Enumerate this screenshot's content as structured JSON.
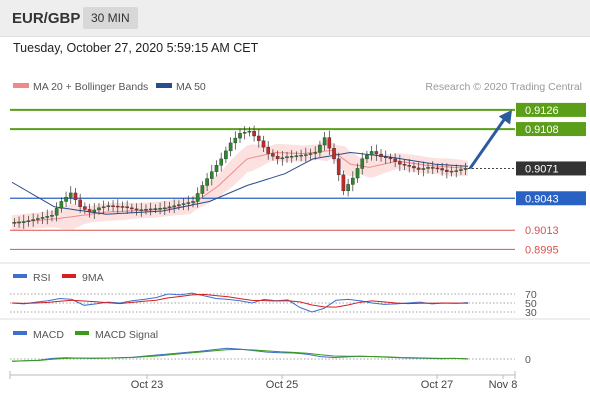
{
  "header": {
    "symbol": "EUR/GBP",
    "timeframe": "30 MIN"
  },
  "datetime": "Tuesday, October 27, 2020 5:59:15 AM CET",
  "chart_data": {
    "type": "candlestick",
    "legend": [
      {
        "label": "MA 20 + Bollinger Bands",
        "color": "#f08a8a"
      },
      {
        "label": "MA 50",
        "color": "#2b4d8c"
      }
    ],
    "copyright": "Research © 2020 Trading Central",
    "ylim": [
      0.8985,
      0.914
    ],
    "last_price": {
      "value": 0.9071,
      "label": "0.9071"
    },
    "levels": [
      {
        "label": "0.9126",
        "value": 0.9126,
        "kind": "resistance",
        "color": "#5a9e1a"
      },
      {
        "label": "0.9108",
        "value": 0.9108,
        "kind": "resistance",
        "color": "#5a9e1a"
      },
      {
        "label": "0.9043",
        "value": 0.9043,
        "kind": "pivot",
        "color": "#2a62c4"
      },
      {
        "label": "0.9013",
        "value": 0.9013,
        "kind": "support",
        "color": "#d9534f"
      },
      {
        "label": "0.8995",
        "value": 0.8995,
        "kind": "support",
        "color": "#d9534f"
      }
    ],
    "arrow": {
      "from": 0.9071,
      "to": 0.9126,
      "color": "#2b5a9e"
    },
    "x_ticks": [
      "Oct 23",
      "Oct 25",
      "Oct 27",
      "Nov 8"
    ],
    "price_path": [
      [
        0,
        0.902
      ],
      [
        3,
        0.9021
      ],
      [
        6,
        0.9024
      ],
      [
        9,
        0.9027
      ],
      [
        11,
        0.904
      ],
      [
        13,
        0.9048
      ],
      [
        15,
        0.9035
      ],
      [
        17,
        0.903
      ],
      [
        19,
        0.9034
      ],
      [
        21,
        0.9036
      ],
      [
        24,
        0.9035
      ],
      [
        27,
        0.9032
      ],
      [
        30,
        0.9033
      ],
      [
        33,
        0.9034
      ],
      [
        36,
        0.9037
      ],
      [
        39,
        0.904
      ],
      [
        41,
        0.9055
      ],
      [
        43,
        0.9068
      ],
      [
        45,
        0.908
      ],
      [
        47,
        0.9095
      ],
      [
        49,
        0.9104
      ],
      [
        51,
        0.9106
      ],
      [
        53,
        0.9097
      ],
      [
        55,
        0.9085
      ],
      [
        57,
        0.908
      ],
      [
        59,
        0.9082
      ],
      [
        61,
        0.9083
      ],
      [
        63,
        0.9084
      ],
      [
        65,
        0.9086
      ],
      [
        67,
        0.91
      ],
      [
        69,
        0.908
      ],
      [
        71,
        0.905
      ],
      [
        73,
        0.9062
      ],
      [
        75,
        0.908
      ],
      [
        77,
        0.9087
      ],
      [
        79,
        0.9082
      ],
      [
        81,
        0.908
      ],
      [
        83,
        0.9075
      ],
      [
        85,
        0.9073
      ],
      [
        87,
        0.907
      ],
      [
        89,
        0.9072
      ],
      [
        91,
        0.9071
      ],
      [
        93,
        0.9068
      ],
      [
        95,
        0.9069
      ],
      [
        97,
        0.9071
      ]
    ],
    "ma20": [
      [
        0,
        0.902
      ],
      [
        10,
        0.9024
      ],
      [
        20,
        0.903
      ],
      [
        30,
        0.9032
      ],
      [
        38,
        0.9036
      ],
      [
        44,
        0.9055
      ],
      [
        50,
        0.908
      ],
      [
        56,
        0.9086
      ],
      [
        62,
        0.9085
      ],
      [
        68,
        0.9088
      ],
      [
        72,
        0.9075
      ],
      [
        76,
        0.9072
      ],
      [
        82,
        0.9078
      ],
      [
        88,
        0.9074
      ],
      [
        97,
        0.9071
      ]
    ],
    "ma50": [
      [
        0,
        0.9058
      ],
      [
        9,
        0.9035
      ],
      [
        20,
        0.9028
      ],
      [
        32,
        0.9031
      ],
      [
        42,
        0.904
      ],
      [
        50,
        0.9055
      ],
      [
        58,
        0.9066
      ],
      [
        64,
        0.908
      ],
      [
        72,
        0.9086
      ],
      [
        80,
        0.9082
      ],
      [
        90,
        0.9075
      ],
      [
        97,
        0.9073
      ]
    ],
    "bb_width": 0.0012,
    "rsi": {
      "label": "RSI",
      "color": "#3d6fcf",
      "signal_label": "9MA",
      "signal_color": "#d42020",
      "levels": [
        70,
        50,
        30
      ],
      "values": [
        50,
        48,
        52,
        55,
        60,
        58,
        45,
        48,
        52,
        50,
        55,
        58,
        62,
        70,
        68,
        72,
        66,
        60,
        58,
        55,
        50,
        58,
        55,
        57,
        40,
        30,
        38,
        56,
        58,
        55,
        50,
        47,
        48,
        50,
        52,
        48,
        50,
        49,
        51
      ]
    },
    "macd": {
      "label": "MACD",
      "color": "#3d6fcf",
      "signal_label": "MACD Signal",
      "signal_color": "#3a9a1a",
      "levels": [
        0
      ],
      "values": [
        -0.8,
        -0.6,
        -0.4,
        0.2,
        0.4,
        0.3,
        0.2,
        0.3,
        0.4,
        0.6,
        1.0,
        1.4,
        1.8,
        2.2,
        2.6,
        3.1,
        3.6,
        3.3,
        2.8,
        2.3,
        2.1,
        2.0,
        1.6,
        0.8,
        0.5,
        0.7,
        0.9,
        0.8,
        0.6,
        0.4,
        0.3,
        0.2,
        0.1,
        0.2,
        0.0
      ],
      "signal": [
        -0.7,
        -0.6,
        -0.5,
        -0.1,
        0.2,
        0.3,
        0.3,
        0.3,
        0.4,
        0.5,
        0.8,
        1.1,
        1.5,
        1.9,
        2.3,
        2.7,
        3.1,
        3.2,
        3.0,
        2.7,
        2.4,
        2.2,
        1.9,
        1.4,
        1.0,
        0.9,
        0.9,
        0.8,
        0.7,
        0.5,
        0.4,
        0.3,
        0.2,
        0.2,
        0.1
      ]
    }
  }
}
